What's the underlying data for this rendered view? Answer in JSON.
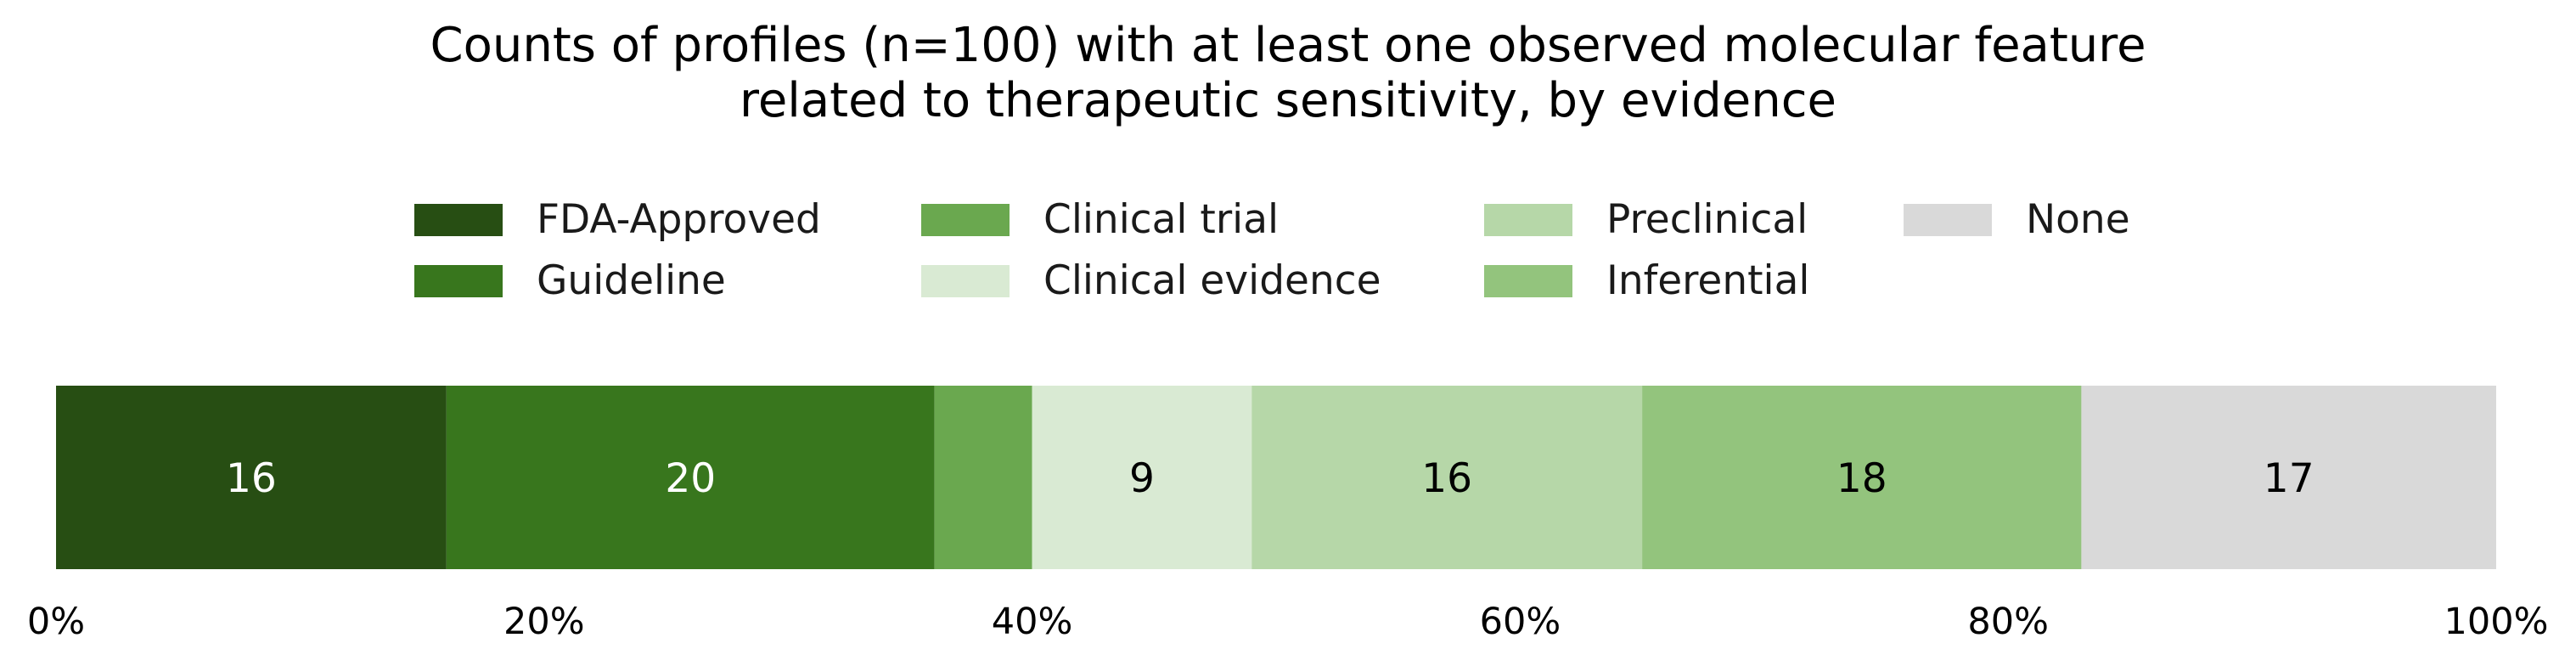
{
  "chart_data": {
    "type": "bar",
    "orientation": "horizontal",
    "stacked": true,
    "title": "Counts of profiles (n=100) with at least one observed molecular feature related to therapeutic sensitivity, by evidence",
    "title_lines": [
      "Counts of profiles (n=100) with at least one observed molecular feature",
      "related to therapeutic sensitivity, by evidence"
    ],
    "xlim": [
      0,
      100
    ],
    "x_ticks": [
      0,
      20,
      40,
      60,
      80,
      100
    ],
    "x_tick_labels": [
      "0%",
      "20%",
      "40%",
      "60%",
      "80%",
      "100%"
    ],
    "grid": false,
    "legend_position": "top-center",
    "legend_columns": 4,
    "series": [
      {
        "name": "FDA-Approved",
        "value": 16,
        "color": "#274e13",
        "label": "16",
        "label_color": "#ffffff"
      },
      {
        "name": "Guideline",
        "value": 20,
        "color": "#38761d",
        "label": "20",
        "label_color": "#ffffff"
      },
      {
        "name": "Clinical trial",
        "value": 4,
        "color": "#6aa84f",
        "label": "",
        "label_color": "#000000"
      },
      {
        "name": "Clinical evidence",
        "value": 9,
        "color": "#d9ead3",
        "label": "9",
        "label_color": "#000000"
      },
      {
        "name": "Preclinical",
        "value": 16,
        "color": "#b6d7a8",
        "label": "16",
        "label_color": "#000000"
      },
      {
        "name": "Inferential",
        "value": 18,
        "color": "#93c47d",
        "label": "18",
        "label_color": "#000000"
      },
      {
        "name": "None",
        "value": 17,
        "color": "#d9d9d9",
        "label": "17",
        "label_color": "#000000"
      }
    ]
  }
}
